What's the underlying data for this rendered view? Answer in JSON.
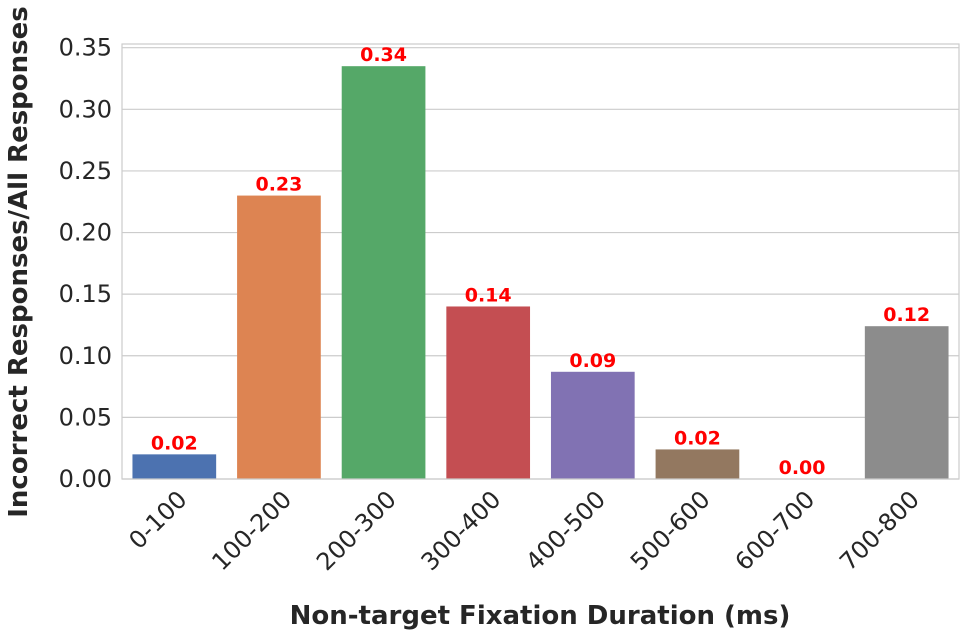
{
  "chart_data": {
    "type": "bar",
    "title": "",
    "xlabel": "Non-target Fixation Duration (ms)",
    "ylabel": "Incorrect Responses/All Responses",
    "categories": [
      "0-100",
      "100-200",
      "200-300",
      "300-400",
      "400-500",
      "500-600",
      "600-700",
      "700-800"
    ],
    "values": [
      0.02,
      0.23,
      0.335,
      0.14,
      0.087,
      0.024,
      0.0,
      0.124
    ],
    "data_labels": [
      "0.02",
      "0.23",
      "0.34",
      "0.14",
      "0.09",
      "0.02",
      "0.00",
      "0.12"
    ],
    "ylim": [
      0,
      0.353
    ],
    "yticks": [
      "0.00",
      "0.05",
      "0.10",
      "0.15",
      "0.20",
      "0.25",
      "0.30",
      "0.35"
    ],
    "grid": true,
    "bar_colors": [
      "#4c72b0",
      "#dd8452",
      "#55a868",
      "#c44e52",
      "#8172b3",
      "#937860",
      "#da8bc3",
      "#8c8c8c"
    ],
    "data_label_color": "#ff0000"
  }
}
